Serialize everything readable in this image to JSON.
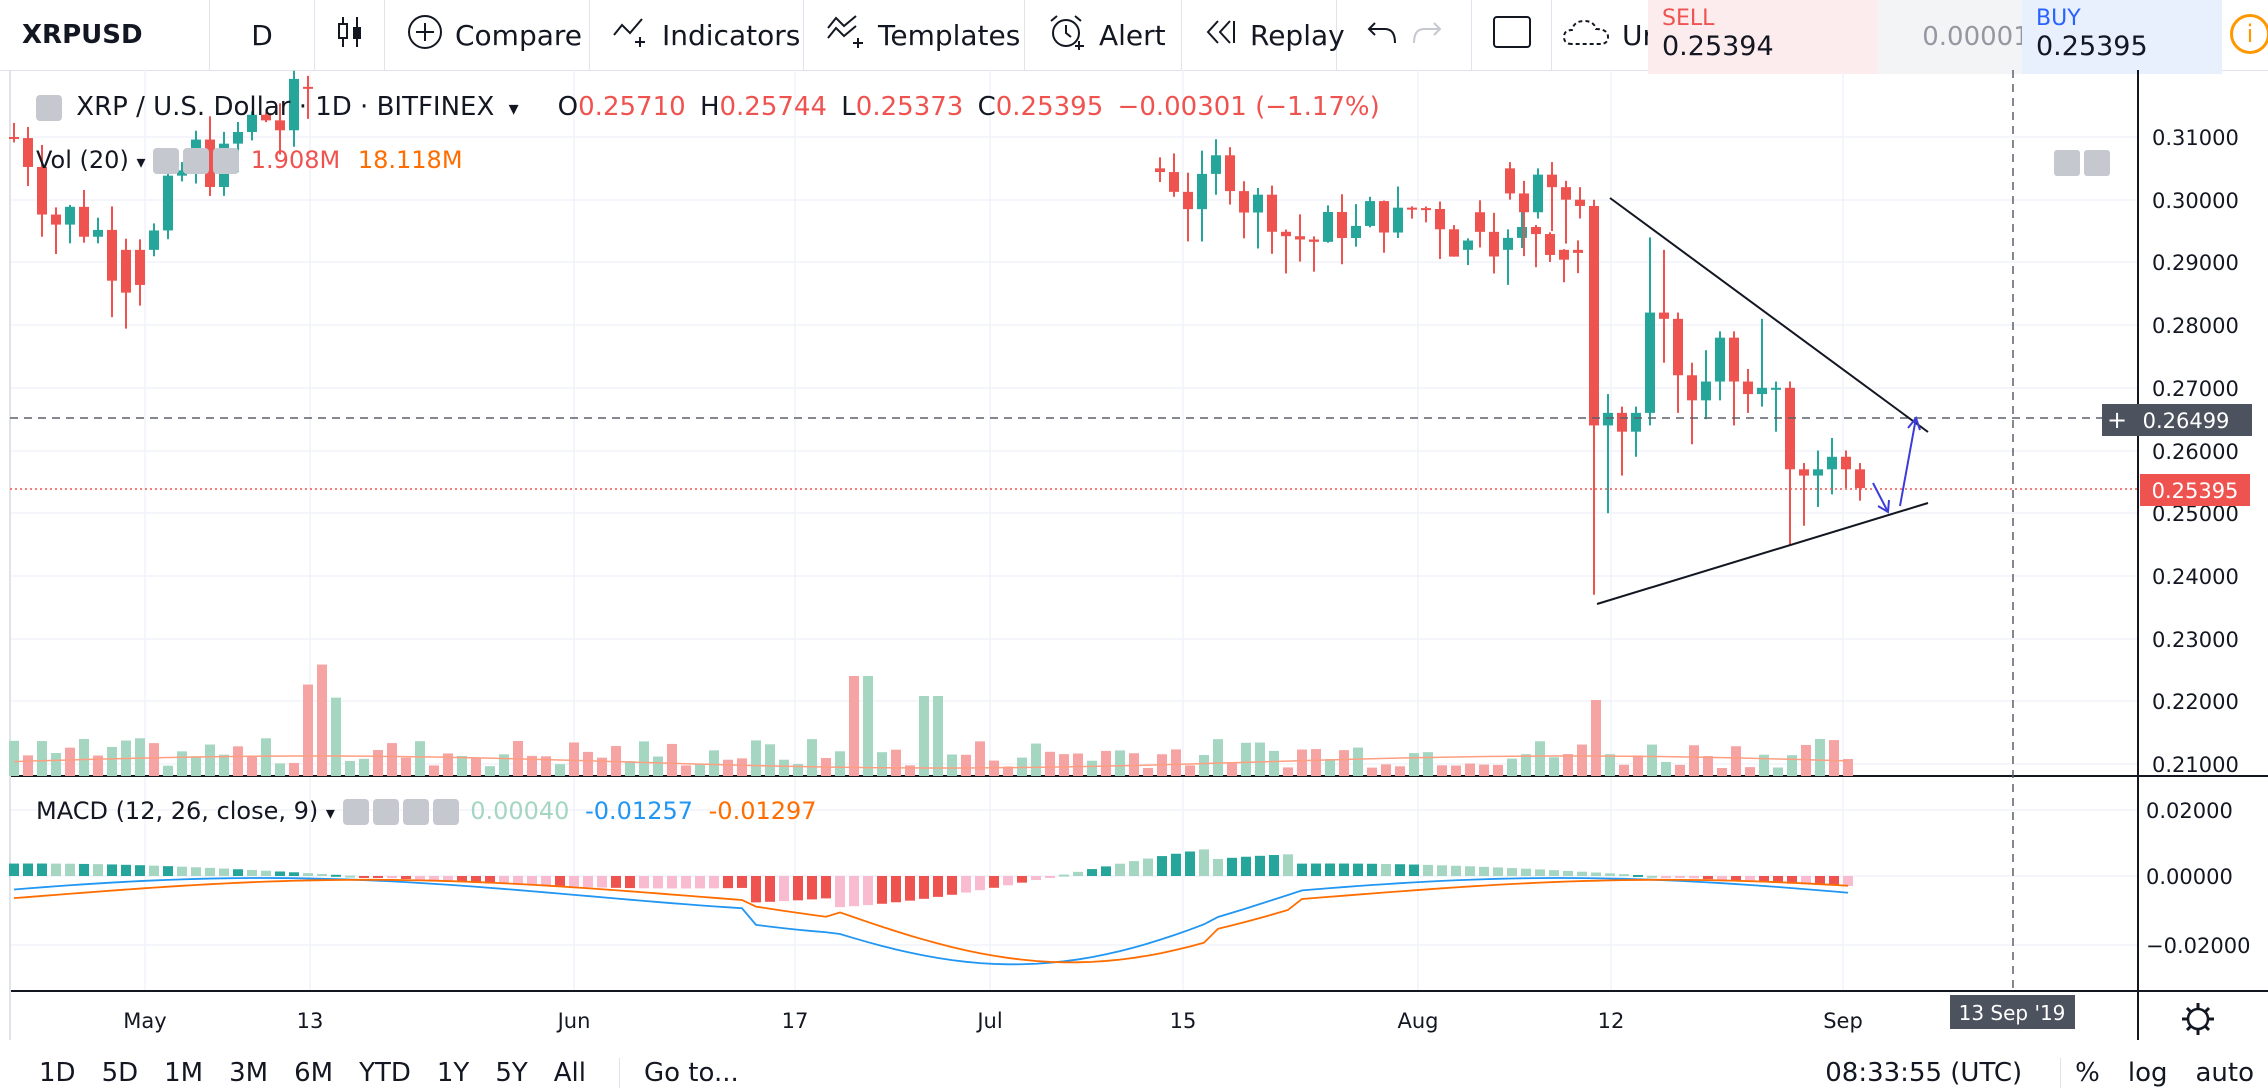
{
  "toolbar": {
    "symbol": "XRPUSD",
    "interval": "D",
    "compare": "Compare",
    "indicators": "Indicators",
    "templates": "Templates",
    "alert": "Alert",
    "replay": "Replay",
    "unnamed_partial": "Ur",
    "sell_label": "SELL",
    "sell_price": "0.25394",
    "spread": "0.00001",
    "buy_label": "BUY",
    "buy_price": "0.25395",
    "info": "i"
  },
  "legend": {
    "title": "XRP / U.S. Dollar · 1D · BITFINEX",
    "o_label": "O",
    "o_value": "0.25710",
    "h_label": "H",
    "h_value": "0.25744",
    "l_label": "L",
    "l_value": "0.25373",
    "c_label": "C",
    "c_value": "0.25395",
    "change": "−0.00301 (−1.17%)"
  },
  "volume_legend": {
    "label": "Vol (20)",
    "value1": "1.908M",
    "value2": "18.118M"
  },
  "macd_legend": {
    "label": "MACD (12, 26, close, 9)",
    "value_hist": "0.00040",
    "value_macd": "-0.01257",
    "value_signal": "-0.01297"
  },
  "price_axis": {
    "labels": [
      "0.31000",
      "0.30000",
      "0.29000",
      "0.28000",
      "0.27000",
      "0.26000",
      "0.25000",
      "0.24000",
      "0.23000",
      "0.22000",
      "0.21000"
    ],
    "crosshair_price": "0.26499",
    "last_price": "0.25395"
  },
  "macd_axis": {
    "labels": [
      "0.02000",
      "0.00000",
      "−0.02000"
    ]
  },
  "time_axis": {
    "labels": [
      "May",
      "13",
      "Jun",
      "17",
      "Jul",
      "15",
      "Aug",
      "12",
      "Sep"
    ],
    "crosshair_date": "13 Sep '19"
  },
  "bottombar": {
    "ranges": [
      "1D",
      "5D",
      "1M",
      "3M",
      "6M",
      "YTD",
      "1Y",
      "5Y",
      "All"
    ],
    "goto": "Go to...",
    "clock": "08:33:55 (UTC)",
    "percent": "%",
    "log": "log",
    "auto": "auto"
  },
  "colors": {
    "up": "#26a69a",
    "down": "#ef5350",
    "macd_line": "#2196f3",
    "signal_line": "#ff6d00",
    "drawing": "#3c3cd8"
  }
}
